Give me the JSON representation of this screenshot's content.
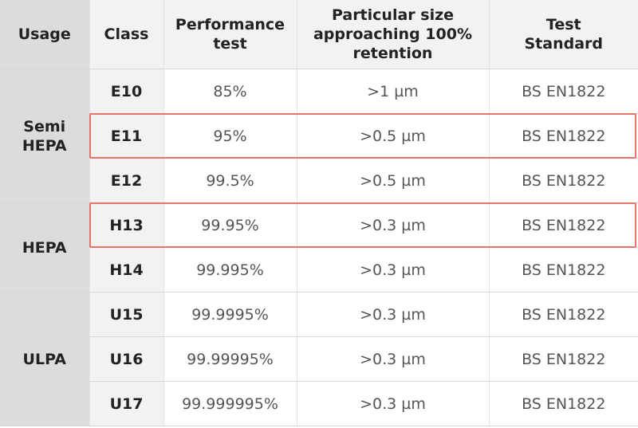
{
  "table": {
    "header": [
      "Usage",
      "Class",
      "Performance\ntest",
      "Particular size\napproaching 100%\nretention",
      "Test\nStandard"
    ],
    "groups": [
      {
        "usage": "Semi\nHEPA",
        "rows": [
          [
            "E10",
            "85%",
            ">1 µm",
            "BS EN1822"
          ],
          [
            "E11",
            "95%",
            ">0.5 µm",
            "BS EN1822"
          ],
          [
            "E12",
            "99.5%",
            ">0.5 µm",
            "BS EN1822"
          ]
        ]
      },
      {
        "usage": "HEPA",
        "rows": [
          [
            "H13",
            "99.95%",
            ">0.3 µm",
            "BS EN1822"
          ],
          [
            "H14",
            "99.995%",
            ">0.3 µm",
            "BS EN1822"
          ]
        ]
      },
      {
        "usage": "ULPA",
        "rows": [
          [
            "U15",
            "99.9995%",
            ">0.3 µm",
            "BS EN1822"
          ],
          [
            "U16",
            "99.99995%",
            ">0.3 µm",
            "BS EN1822"
          ],
          [
            "U17",
            "99.999995%",
            ">0.3 µm",
            "BS EN1822"
          ]
        ]
      }
    ]
  }
}
